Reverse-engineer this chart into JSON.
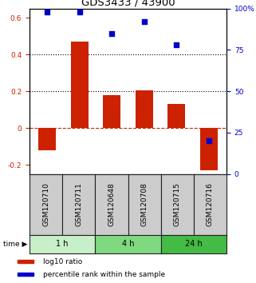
{
  "title": "GDS3433 / 43900",
  "samples": [
    "GSM120710",
    "GSM120711",
    "GSM120648",
    "GSM120708",
    "GSM120715",
    "GSM120716"
  ],
  "log10_ratio": [
    -0.12,
    0.47,
    0.18,
    0.205,
    0.13,
    -0.23
  ],
  "percentile_rank": [
    0.98,
    0.98,
    0.85,
    0.92,
    0.78,
    0.2
  ],
  "bar_color": "#cc2200",
  "dot_color": "#0000cc",
  "ylim_left": [
    -0.25,
    0.65
  ],
  "ylim_right": [
    0.0,
    1.0
  ],
  "yticks_left": [
    -0.2,
    0.0,
    0.2,
    0.4,
    0.6
  ],
  "yticks_right": [
    0.0,
    0.25,
    0.5,
    0.75,
    1.0
  ],
  "ytick_labels_right": [
    "0",
    "25",
    "50",
    "75",
    "100%"
  ],
  "ytick_labels_left": [
    "-0.2",
    "0",
    "0.2",
    "0.4",
    "0.6"
  ],
  "hlines": [
    0.2,
    0.4
  ],
  "hline_zero_color": "#cc2200",
  "hline_dotted_color": "#000000",
  "time_groups": [
    {
      "label": "1 h",
      "indices": [
        0,
        1
      ],
      "color": "#c8f0c8"
    },
    {
      "label": "4 h",
      "indices": [
        2,
        3
      ],
      "color": "#80d880"
    },
    {
      "label": "24 h",
      "indices": [
        4,
        5
      ],
      "color": "#44bb44"
    }
  ],
  "legend_items": [
    {
      "label": "log10 ratio",
      "color": "#cc2200"
    },
    {
      "label": "percentile rank within the sample",
      "color": "#0000cc"
    }
  ],
  "bar_width": 0.55,
  "dot_size": 18,
  "label_fontsize": 6.5,
  "tick_fontsize": 6.5,
  "title_fontsize": 9.5,
  "sample_box_color": "#cccccc",
  "sample_box_border": "#222222"
}
